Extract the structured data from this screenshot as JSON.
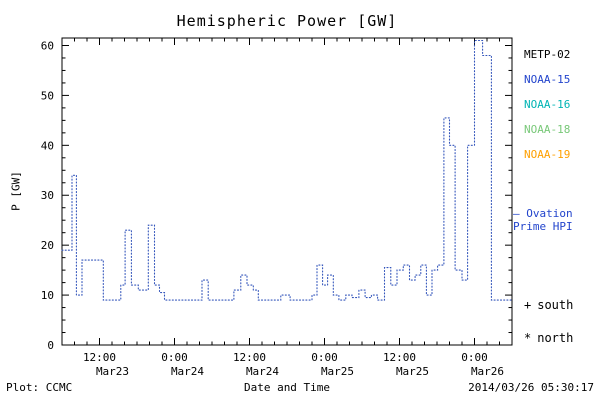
{
  "title": "Hemispheric Power [GW]",
  "ylabel": "P [GW]",
  "footer": {
    "credit": "Plot: CCMC",
    "xlabel": "Date and Time",
    "timestamp": "2014/03/26 05:30:17"
  },
  "legend": {
    "satellites": [
      {
        "label": "METP-02",
        "color": "#000000"
      },
      {
        "label": "NOAA-15",
        "color": "#2244cc"
      },
      {
        "label": "NOAA-16",
        "color": "#00b4b4"
      },
      {
        "label": "NOAA-18",
        "color": "#78c878"
      },
      {
        "label": "NOAA-19",
        "color": "#ffa000"
      }
    ],
    "ovation": {
      "line1": "— Ovation",
      "line2": "Prime HPI",
      "color": "#2244cc"
    },
    "markers": [
      {
        "symbol": "+",
        "label": "south"
      },
      {
        "symbol": "*",
        "label": "north"
      }
    ]
  },
  "chart_data": {
    "type": "line",
    "line_style": "dotted-step",
    "line_color": "#3355bb",
    "title": "Hemispheric Power [GW]",
    "xlabel": "Date and Time",
    "ylabel": "P [GW]",
    "ylim": [
      0,
      61.5
    ],
    "xlim_hours": [
      0,
      72
    ],
    "grid": false,
    "legend_position": "right",
    "y_ticks": [
      0,
      10,
      20,
      30,
      40,
      50,
      60
    ],
    "x_ticks": [
      {
        "hour": 6,
        "time": "12:00",
        "date": "Mar23"
      },
      {
        "hour": 18,
        "time": "0:00",
        "date": "Mar24"
      },
      {
        "hour": 30,
        "time": "12:00",
        "date": "Mar24"
      },
      {
        "hour": 42,
        "time": "0:00",
        "date": "Mar25"
      },
      {
        "hour": 54,
        "time": "12:00",
        "date": "Mar25"
      },
      {
        "hour": 66,
        "time": "0:00",
        "date": "Mar26"
      }
    ],
    "series": [
      {
        "name": "Hemispheric Power",
        "points": [
          [
            0,
            19
          ],
          [
            1.6,
            34
          ],
          [
            2.3,
            10
          ],
          [
            3.2,
            17
          ],
          [
            6.6,
            9
          ],
          [
            9.4,
            12
          ],
          [
            10.1,
            23
          ],
          [
            11.1,
            12
          ],
          [
            12.2,
            11
          ],
          [
            13.8,
            24
          ],
          [
            14.8,
            12
          ],
          [
            15.6,
            10.5
          ],
          [
            16.4,
            9
          ],
          [
            22.4,
            13
          ],
          [
            23.4,
            9
          ],
          [
            27.5,
            11
          ],
          [
            28.6,
            14
          ],
          [
            29.6,
            12
          ],
          [
            30.6,
            11
          ],
          [
            31.4,
            9
          ],
          [
            35,
            10
          ],
          [
            36.5,
            9
          ],
          [
            40,
            10
          ],
          [
            40.8,
            16
          ],
          [
            41.7,
            12
          ],
          [
            42.5,
            14
          ],
          [
            43.4,
            10
          ],
          [
            44.3,
            9
          ],
          [
            45.4,
            10
          ],
          [
            46.4,
            9.5
          ],
          [
            47.5,
            11
          ],
          [
            48.5,
            9.5
          ],
          [
            49.5,
            10
          ],
          [
            50.5,
            9
          ],
          [
            51.6,
            15.5
          ],
          [
            52.6,
            12
          ],
          [
            53.6,
            15
          ],
          [
            54.6,
            16
          ],
          [
            55.6,
            13
          ],
          [
            56.5,
            14
          ],
          [
            57.4,
            16
          ],
          [
            58.3,
            10
          ],
          [
            59.2,
            15
          ],
          [
            60.1,
            16
          ],
          [
            61.1,
            45.5
          ],
          [
            62,
            40
          ],
          [
            62.9,
            15
          ],
          [
            64,
            13
          ],
          [
            64.9,
            40
          ],
          [
            66,
            61
          ],
          [
            67.3,
            58
          ],
          [
            68.7,
            9
          ],
          [
            72,
            9
          ]
        ]
      }
    ]
  }
}
